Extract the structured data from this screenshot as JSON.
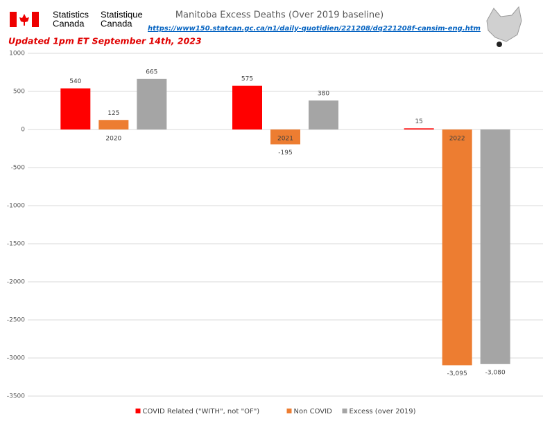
{
  "header": {
    "statcan_en_1": "Statistics",
    "statcan_en_2": "Canada",
    "statcan_fr_1": "Statistique",
    "statcan_fr_2": "Canada"
  },
  "chart_data": {
    "type": "bar",
    "title": "Manitoba Excess Deaths (Over 2019 baseline)",
    "source_url": "https://www150.statcan.gc.ca/n1/daily-quotidien/221208/dq221208f-cansim-eng.htm",
    "annotation": "Updated 1pm ET September 14th, 2023",
    "categories": [
      "2020",
      "2021",
      "2022"
    ],
    "series": [
      {
        "name": "COVID Related (\"WITH\", not \"OF\")",
        "color": "#ff0000",
        "values": [
          540,
          575,
          15
        ]
      },
      {
        "name": "Non COVID",
        "color": "#ed7d31",
        "values": [
          125,
          -195,
          -3095
        ],
        "value_labels": [
          "125",
          "-195",
          "-3,095"
        ]
      },
      {
        "name": "Excess (over 2019)",
        "color": "#a5a5a5",
        "values": [
          665,
          380,
          -3080
        ],
        "value_labels": [
          "665",
          "380",
          "-3,080"
        ]
      }
    ],
    "ylim": [
      -3500,
      1000
    ],
    "yticks": [
      1000,
      500,
      0,
      -500,
      -1000,
      -1500,
      -2000,
      -2500,
      -3000,
      -3500
    ],
    "grid": true,
    "legend": "bottom"
  }
}
